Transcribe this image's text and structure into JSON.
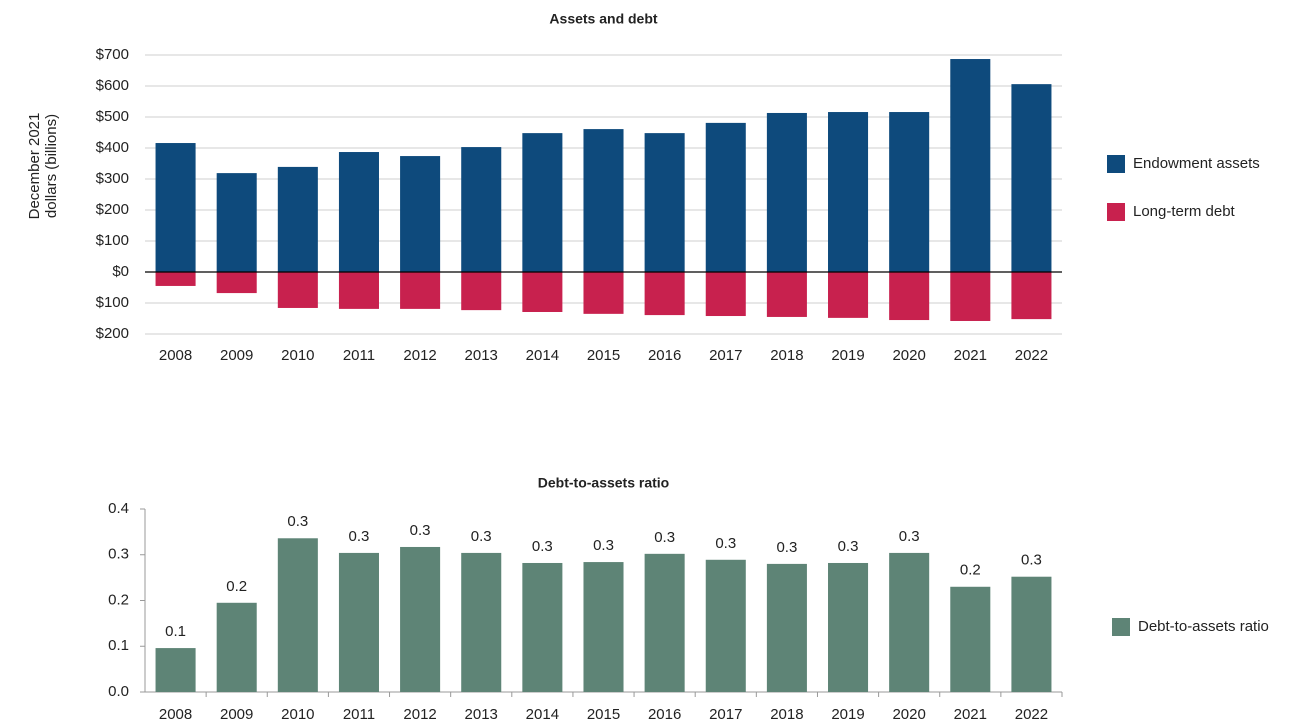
{
  "chart_data": [
    {
      "type": "bar",
      "title": "Assets and debt",
      "y_label": "December 2021 dollars (billions)",
      "categories": [
        "2008",
        "2009",
        "2010",
        "2011",
        "2012",
        "2013",
        "2014",
        "2015",
        "2016",
        "2017",
        "2018",
        "2019",
        "2020",
        "2021",
        "2022"
      ],
      "series": [
        {
          "name": "Endowment assets",
          "color": "#0e4a7c",
          "values": [
            416,
            319,
            339,
            387,
            374,
            403,
            448,
            461,
            448,
            481,
            513,
            516,
            516,
            687,
            606
          ]
        },
        {
          "name": "Long-term debt",
          "color": "#c8214e",
          "values": [
            -45,
            -68,
            -116,
            -119,
            -119,
            -123,
            -129,
            -135,
            -139,
            -142,
            -145,
            -148,
            -155,
            -158,
            -152
          ]
        }
      ],
      "ylim": [
        -200,
        700
      ],
      "yticks": [
        {
          "value": 700,
          "label": "$700"
        },
        {
          "value": 600,
          "label": "$600"
        },
        {
          "value": 500,
          "label": "$500"
        },
        {
          "value": 400,
          "label": "$400"
        },
        {
          "value": 300,
          "label": "$300"
        },
        {
          "value": 200,
          "label": "$200"
        },
        {
          "value": 100,
          "label": "$100"
        },
        {
          "value": 0,
          "label": "$0"
        },
        {
          "value": -100,
          "label": "$100"
        },
        {
          "value": -200,
          "label": "$200"
        }
      ],
      "grid": true
    },
    {
      "type": "bar",
      "title": "Debt-to-assets ratio",
      "categories": [
        "2008",
        "2009",
        "2010",
        "2011",
        "2012",
        "2013",
        "2014",
        "2015",
        "2016",
        "2017",
        "2018",
        "2019",
        "2020",
        "2021",
        "2022"
      ],
      "series": [
        {
          "name": "Debt-to-assets ratio",
          "color": "#5e8476",
          "values": [
            0.096,
            0.195,
            0.336,
            0.304,
            0.317,
            0.304,
            0.282,
            0.284,
            0.302,
            0.289,
            0.28,
            0.282,
            0.304,
            0.23,
            0.252
          ],
          "value_labels": [
            "0.1",
            "0.2",
            "0.3",
            "0.3",
            "0.3",
            "0.3",
            "0.3",
            "0.3",
            "0.3",
            "0.3",
            "0.3",
            "0.3",
            "0.3",
            "0.2",
            "0.3"
          ]
        }
      ],
      "ylim": [
        0,
        0.4
      ],
      "yticks": [
        {
          "value": 0,
          "label": "0.0"
        },
        0.1,
        0.2,
        0.3,
        0.4
      ],
      "grid": false
    }
  ]
}
